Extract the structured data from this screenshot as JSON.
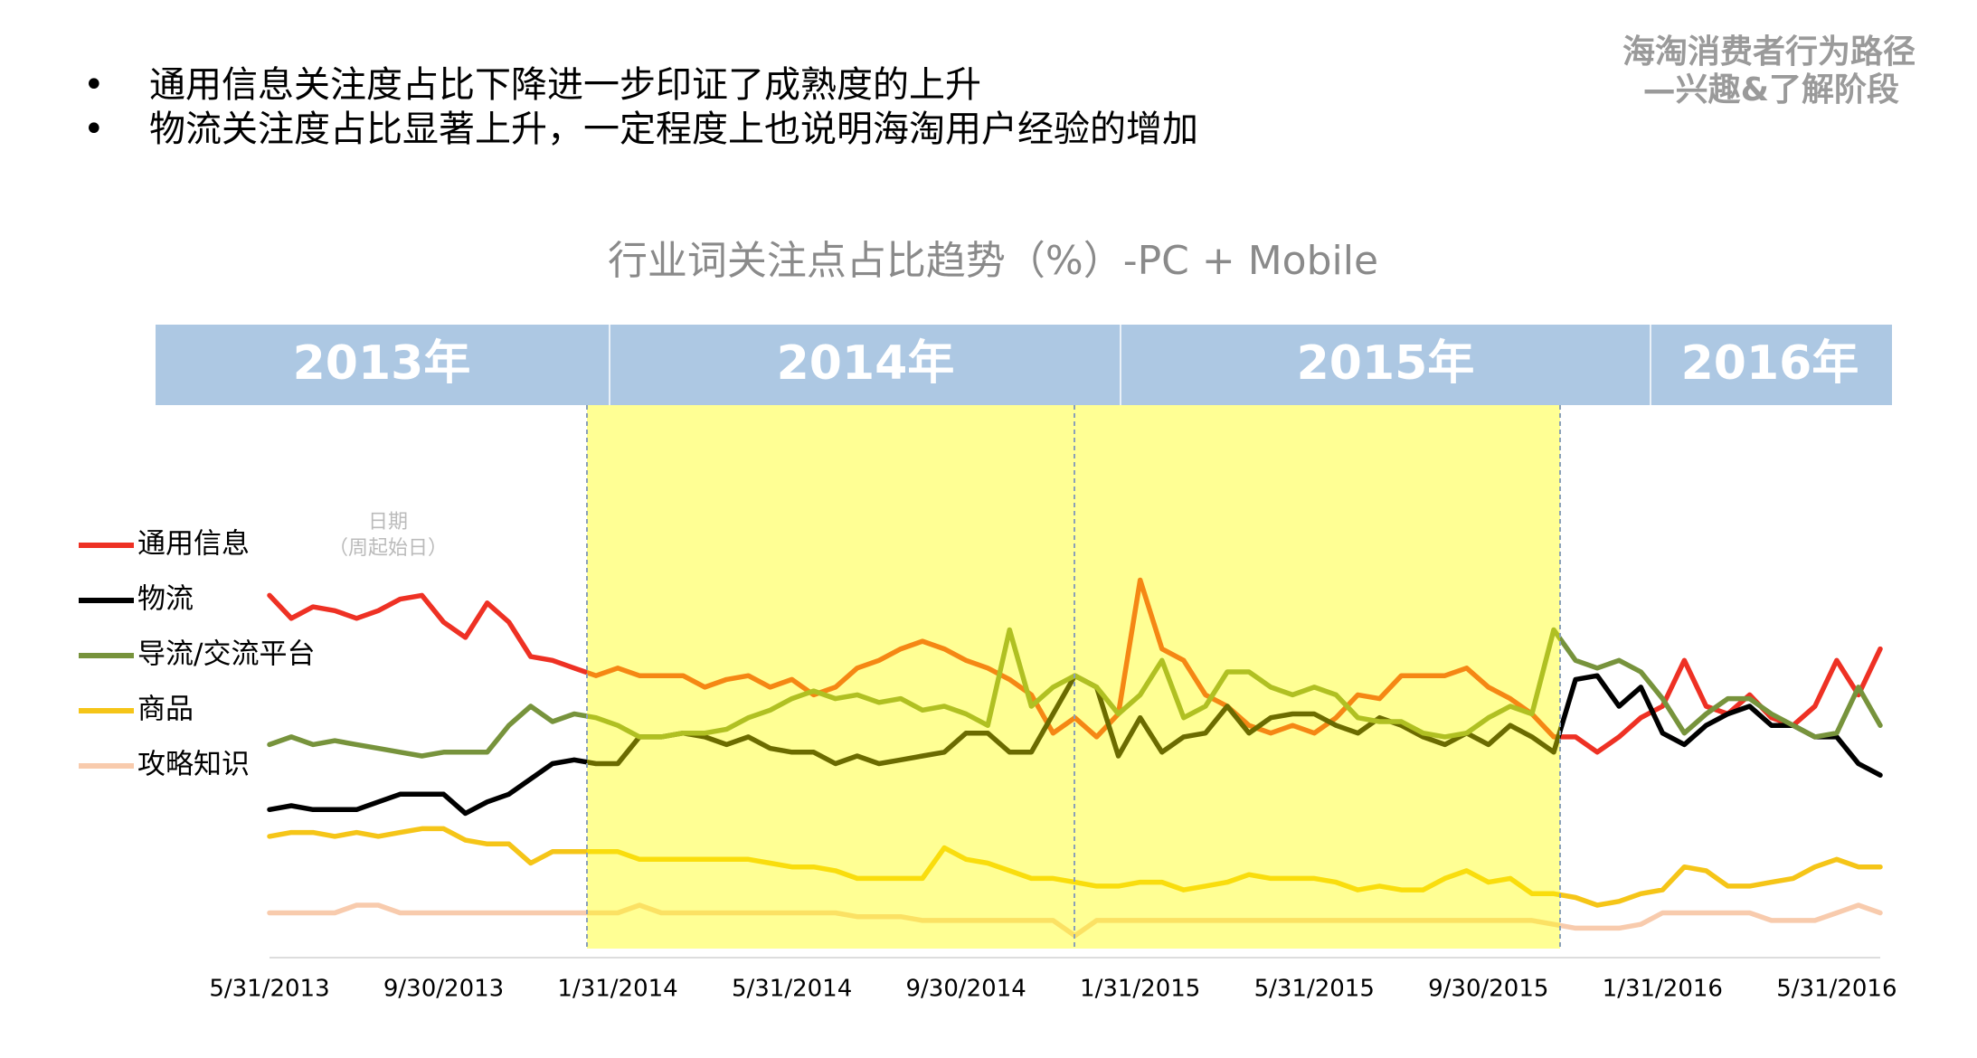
{
  "bullets": [
    "通用信息关注度占比下降进一步印证了成熟度的上升",
    "物流关注度占比显著上升，一定程度上也说明海淘用户经验的增加"
  ],
  "header": [
    "海淘消费者行为路径",
    "—兴趣&了解阶段"
  ],
  "year_bands": [
    "2013年",
    "2014年",
    "2015年",
    "2016年"
  ],
  "chart_data": {
    "type": "line",
    "title": "行业词关注点占比趋势（%）-PC + Mobile",
    "annotations": [
      "日期",
      "（周起始日）"
    ],
    "categories": [
      "5/31/2013",
      null,
      null,
      null,
      null,
      null,
      null,
      null,
      "9/30/2013",
      null,
      null,
      null,
      null,
      null,
      null,
      null,
      "1/31/2014",
      null,
      null,
      null,
      null,
      null,
      null,
      null,
      "5/31/2014",
      null,
      null,
      null,
      null,
      null,
      null,
      null,
      "9/30/2014",
      null,
      null,
      null,
      null,
      null,
      null,
      null,
      "1/31/2015",
      null,
      null,
      null,
      null,
      null,
      null,
      null,
      "5/31/2015",
      null,
      null,
      null,
      null,
      null,
      null,
      null,
      "9/30/2015",
      null,
      null,
      null,
      null,
      null,
      null,
      null,
      "1/31/2016",
      null,
      null,
      null,
      null,
      null,
      null,
      null,
      "5/31/2016",
      null,
      null
    ],
    "ylim": [
      0,
      100
    ],
    "series": [
      {
        "name": "通用信息",
        "color": "#ee3124",
        "values": [
          94,
          88,
          91,
          90,
          88,
          90,
          93,
          94,
          87,
          83,
          92,
          87,
          78,
          77,
          75,
          73,
          75,
          73,
          73,
          73,
          70,
          72,
          73,
          70,
          72,
          68,
          70,
          75,
          77,
          80,
          82,
          80,
          77,
          75,
          72,
          68,
          58,
          62,
          57,
          63,
          98,
          80,
          77,
          68,
          65,
          60,
          58,
          60,
          58,
          62,
          68,
          67,
          73,
          73,
          73,
          75,
          70,
          67,
          63,
          57,
          57,
          53,
          57,
          62,
          65,
          77,
          65,
          63,
          68,
          62,
          60,
          65,
          77,
          68,
          80
        ]
      },
      {
        "name": "物流",
        "color": "#000000",
        "values": [
          38,
          39,
          38,
          38,
          38,
          40,
          42,
          42,
          42,
          37,
          40,
          42,
          46,
          50,
          51,
          50,
          50,
          57,
          57,
          58,
          57,
          55,
          57,
          54,
          53,
          53,
          50,
          52,
          50,
          51,
          52,
          53,
          58,
          58,
          53,
          53,
          63,
          73,
          70,
          52,
          62,
          53,
          57,
          58,
          65,
          58,
          62,
          63,
          63,
          60,
          58,
          62,
          60,
          57,
          55,
          58,
          55,
          60,
          57,
          53,
          72,
          73,
          65,
          70,
          58,
          55,
          60,
          63,
          65,
          60,
          60,
          57,
          57,
          50,
          47
        ]
      },
      {
        "name": "导流/交流平台",
        "color": "#77933c",
        "values": [
          55,
          57,
          55,
          56,
          55,
          54,
          53,
          52,
          53,
          53,
          53,
          60,
          65,
          61,
          63,
          62,
          60,
          57,
          57,
          58,
          58,
          59,
          62,
          64,
          67,
          69,
          67,
          68,
          66,
          67,
          64,
          65,
          63,
          60,
          85,
          65,
          70,
          73,
          70,
          63,
          68,
          77,
          62,
          65,
          74,
          74,
          70,
          68,
          70,
          68,
          62,
          61,
          61,
          58,
          57,
          58,
          62,
          65,
          63,
          85,
          77,
          75,
          77,
          74,
          67,
          58,
          63,
          67,
          67,
          63,
          60,
          57,
          58,
          70,
          60
        ]
      },
      {
        "name": "商品",
        "color": "#f5c518",
        "values": [
          31,
          32,
          32,
          31,
          32,
          31,
          32,
          33,
          33,
          30,
          29,
          29,
          24,
          27,
          27,
          27,
          27,
          25,
          25,
          25,
          25,
          25,
          25,
          24,
          23,
          23,
          22,
          20,
          20,
          20,
          20,
          28,
          25,
          24,
          22,
          20,
          20,
          19,
          18,
          18,
          19,
          19,
          17,
          18,
          19,
          21,
          20,
          20,
          20,
          19,
          17,
          18,
          17,
          17,
          20,
          22,
          19,
          20,
          16,
          16,
          15,
          13,
          14,
          16,
          17,
          23,
          22,
          18,
          18,
          19,
          20,
          23,
          25,
          23,
          23
        ]
      },
      {
        "name": "攻略知识",
        "color": "#f8cbad",
        "values": [
          11,
          11,
          11,
          11,
          13,
          13,
          11,
          11,
          11,
          11,
          11,
          11,
          11,
          11,
          11,
          11,
          11,
          13,
          11,
          11,
          11,
          11,
          11,
          11,
          11,
          11,
          11,
          10,
          10,
          10,
          9,
          9,
          9,
          9,
          9,
          9,
          9,
          5,
          9,
          9,
          9,
          9,
          9,
          9,
          9,
          9,
          9,
          9,
          9,
          9,
          9,
          9,
          9,
          9,
          9,
          9,
          9,
          9,
          9,
          8,
          7,
          7,
          7,
          8,
          11,
          11,
          11,
          11,
          11,
          9,
          9,
          9,
          11,
          13,
          11
        ]
      }
    ]
  }
}
